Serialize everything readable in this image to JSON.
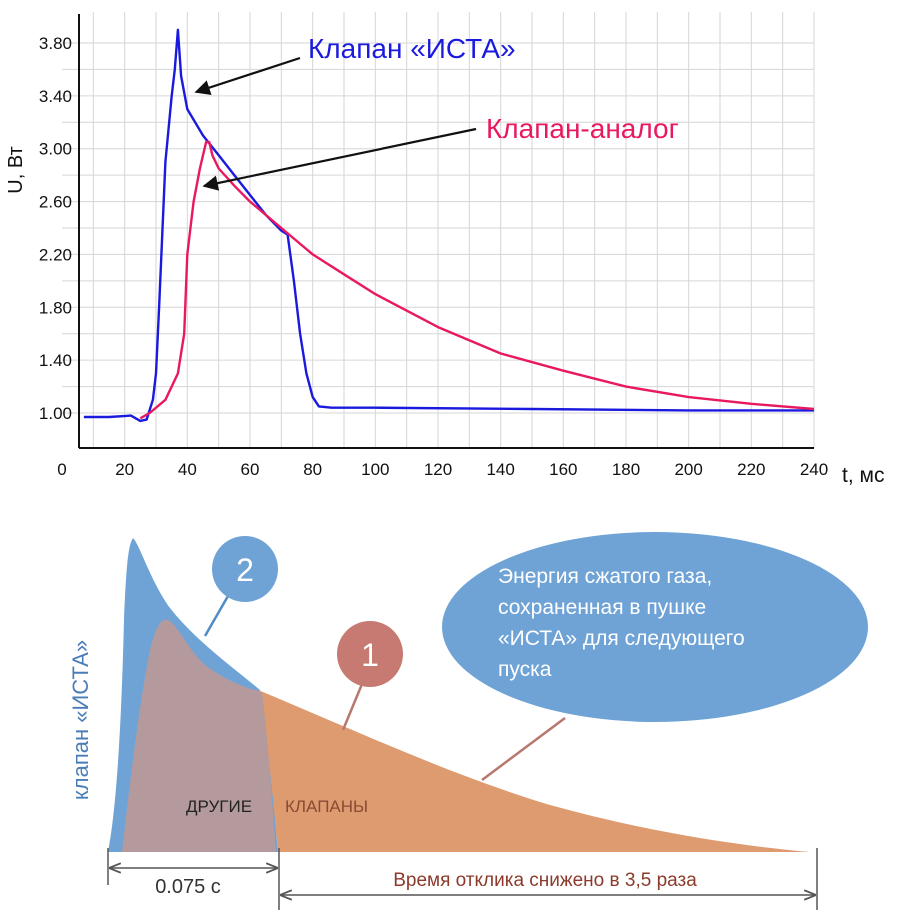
{
  "chart_data": {
    "type": "line",
    "title": "",
    "xlabel": "t, мс",
    "ylabel": "U, Вт",
    "xlim": [
      0,
      240
    ],
    "ylim": [
      0.8,
      4.0
    ],
    "x_ticks": [
      0,
      20,
      40,
      60,
      80,
      100,
      120,
      140,
      160,
      180,
      200,
      220,
      240
    ],
    "y_ticks": [
      1.0,
      1.4,
      1.8,
      2.2,
      2.6,
      3.0,
      3.4,
      3.8
    ],
    "x_tick_labels": [
      "0",
      "20",
      "40",
      "60",
      "80",
      "100",
      "120",
      "140",
      "160",
      "180",
      "200",
      "220",
      "240"
    ],
    "y_tick_labels": [
      "1.00",
      "1.40",
      "1.80",
      "2.20",
      "2.60",
      "3.00",
      "3.40",
      "3.80"
    ],
    "grid": true,
    "series": [
      {
        "name": "Клапан «ИСТА»",
        "color": "#1a1adf",
        "points": [
          [
            7,
            0.97
          ],
          [
            15,
            0.97
          ],
          [
            22,
            0.98
          ],
          [
            25,
            0.94
          ],
          [
            27,
            0.95
          ],
          [
            29,
            1.1
          ],
          [
            30,
            1.3
          ],
          [
            31,
            1.8
          ],
          [
            33,
            2.9
          ],
          [
            35,
            3.4
          ],
          [
            36,
            3.6
          ],
          [
            37,
            3.9
          ],
          [
            38,
            3.55
          ],
          [
            40,
            3.3
          ],
          [
            45,
            3.1
          ],
          [
            50,
            2.95
          ],
          [
            55,
            2.8
          ],
          [
            60,
            2.65
          ],
          [
            65,
            2.5
          ],
          [
            70,
            2.38
          ],
          [
            72,
            2.35
          ],
          [
            74,
            2.0
          ],
          [
            76,
            1.6
          ],
          [
            78,
            1.3
          ],
          [
            80,
            1.12
          ],
          [
            82,
            1.05
          ],
          [
            86,
            1.04
          ],
          [
            100,
            1.04
          ],
          [
            150,
            1.03
          ],
          [
            200,
            1.02
          ],
          [
            240,
            1.02
          ]
        ]
      },
      {
        "name": "Клапан-аналог",
        "color": "#e8195e",
        "points": [
          [
            25,
            0.96
          ],
          [
            28,
            1.0
          ],
          [
            33,
            1.1
          ],
          [
            37,
            1.3
          ],
          [
            39,
            1.6
          ],
          [
            40,
            2.2
          ],
          [
            42,
            2.6
          ],
          [
            44,
            2.85
          ],
          [
            46,
            3.05
          ],
          [
            47,
            3.05
          ],
          [
            48,
            2.95
          ],
          [
            50,
            2.85
          ],
          [
            55,
            2.72
          ],
          [
            60,
            2.6
          ],
          [
            70,
            2.4
          ],
          [
            80,
            2.2
          ],
          [
            90,
            2.05
          ],
          [
            100,
            1.9
          ],
          [
            120,
            1.65
          ],
          [
            140,
            1.45
          ],
          [
            160,
            1.32
          ],
          [
            180,
            1.2
          ],
          [
            200,
            1.12
          ],
          [
            220,
            1.07
          ],
          [
            240,
            1.03
          ]
        ]
      }
    ],
    "annotations": [
      {
        "text": "Клапан «ИСТА»",
        "color": "#1a1adf"
      },
      {
        "text": "Клапан-аналог",
        "color": "#e8195e"
      }
    ]
  },
  "diagram": {
    "side_label": "клапан «ИСТА»",
    "label_others": "ДРУГИЕ",
    "label_valves": "КЛАПАНЫ",
    "badge_1": "1",
    "badge_2": "2",
    "ellipse_lines": [
      "Энергия сжатого газа,",
      "сохраненная в пушке",
      "«ИСТА» для следующего",
      "пуска"
    ],
    "time_left": "0.075 с",
    "time_right": "Время отклика снижено в 3,5 раза",
    "colors": {
      "ista": "#6fa3d6",
      "others": "#b49a9c",
      "energy": "#df9b70",
      "badge1": "#c67a72",
      "badge2": "#6fa3d6",
      "ellipse": "#6fa3d6",
      "right_text": "#8b3a2b"
    }
  }
}
